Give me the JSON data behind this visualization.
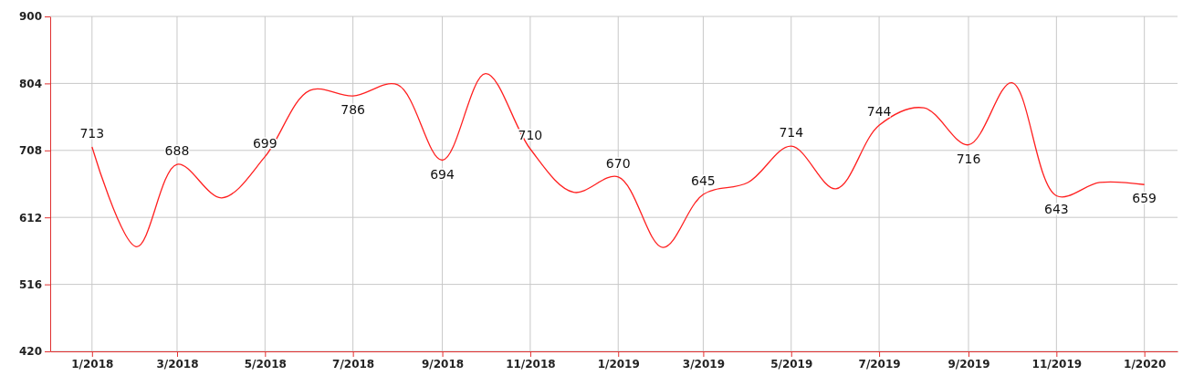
{
  "chart_data": {
    "type": "line",
    "x": [
      "2018-01",
      "2018-02",
      "2018-03",
      "2018-04",
      "2018-05",
      "2018-06",
      "2018-07",
      "2018-08",
      "2018-09",
      "2018-10",
      "2018-11",
      "2018-12",
      "2019-01",
      "2019-02",
      "2019-03",
      "2019-04",
      "2019-05",
      "2019-06",
      "2019-07",
      "2019-08",
      "2019-09",
      "2019-10",
      "2019-11",
      "2019-12",
      "2020-01"
    ],
    "series": [
      {
        "color": "#ff2020",
        "values": [
          713,
          570,
          688,
          640,
          699,
          794,
          786,
          802,
          694,
          818,
          710,
          648,
          670,
          569,
          645,
          662,
          714,
          653,
          744,
          769,
          716,
          805,
          643,
          662,
          659
        ],
        "value_labels": [
          "713",
          null,
          "688",
          null,
          "699",
          null,
          "786",
          null,
          "694",
          null,
          "710",
          null,
          "670",
          null,
          "645",
          null,
          "714",
          null,
          "744",
          null,
          "716",
          null,
          "643",
          null,
          "659"
        ]
      }
    ],
    "xlim": [
      "2017-12-03",
      "2020-01-24"
    ],
    "xticks": [
      {
        "value": "2018-01",
        "label": "1/2018"
      },
      {
        "value": "2018-03",
        "label": "3/2018"
      },
      {
        "value": "2018-05",
        "label": "5/2018"
      },
      {
        "value": "2018-07",
        "label": "7/2018"
      },
      {
        "value": "2018-09",
        "label": "9/2018"
      },
      {
        "value": "2018-11",
        "label": "11/2018"
      },
      {
        "value": "2019-01",
        "label": "1/2019"
      },
      {
        "value": "2019-03",
        "label": "3/2019"
      },
      {
        "value": "2019-05",
        "label": "5/2019"
      },
      {
        "value": "2019-07",
        "label": "7/2019"
      },
      {
        "value": "2019-09",
        "label": "9/2019"
      },
      {
        "value": "2019-11",
        "label": "11/2019"
      },
      {
        "value": "2020-01",
        "label": "1/2020"
      }
    ],
    "ylim": [
      420,
      900
    ],
    "yticks": [
      420,
      516,
      612,
      708,
      804,
      900
    ],
    "grid": true,
    "marker": "none",
    "line_style": "solid"
  }
}
